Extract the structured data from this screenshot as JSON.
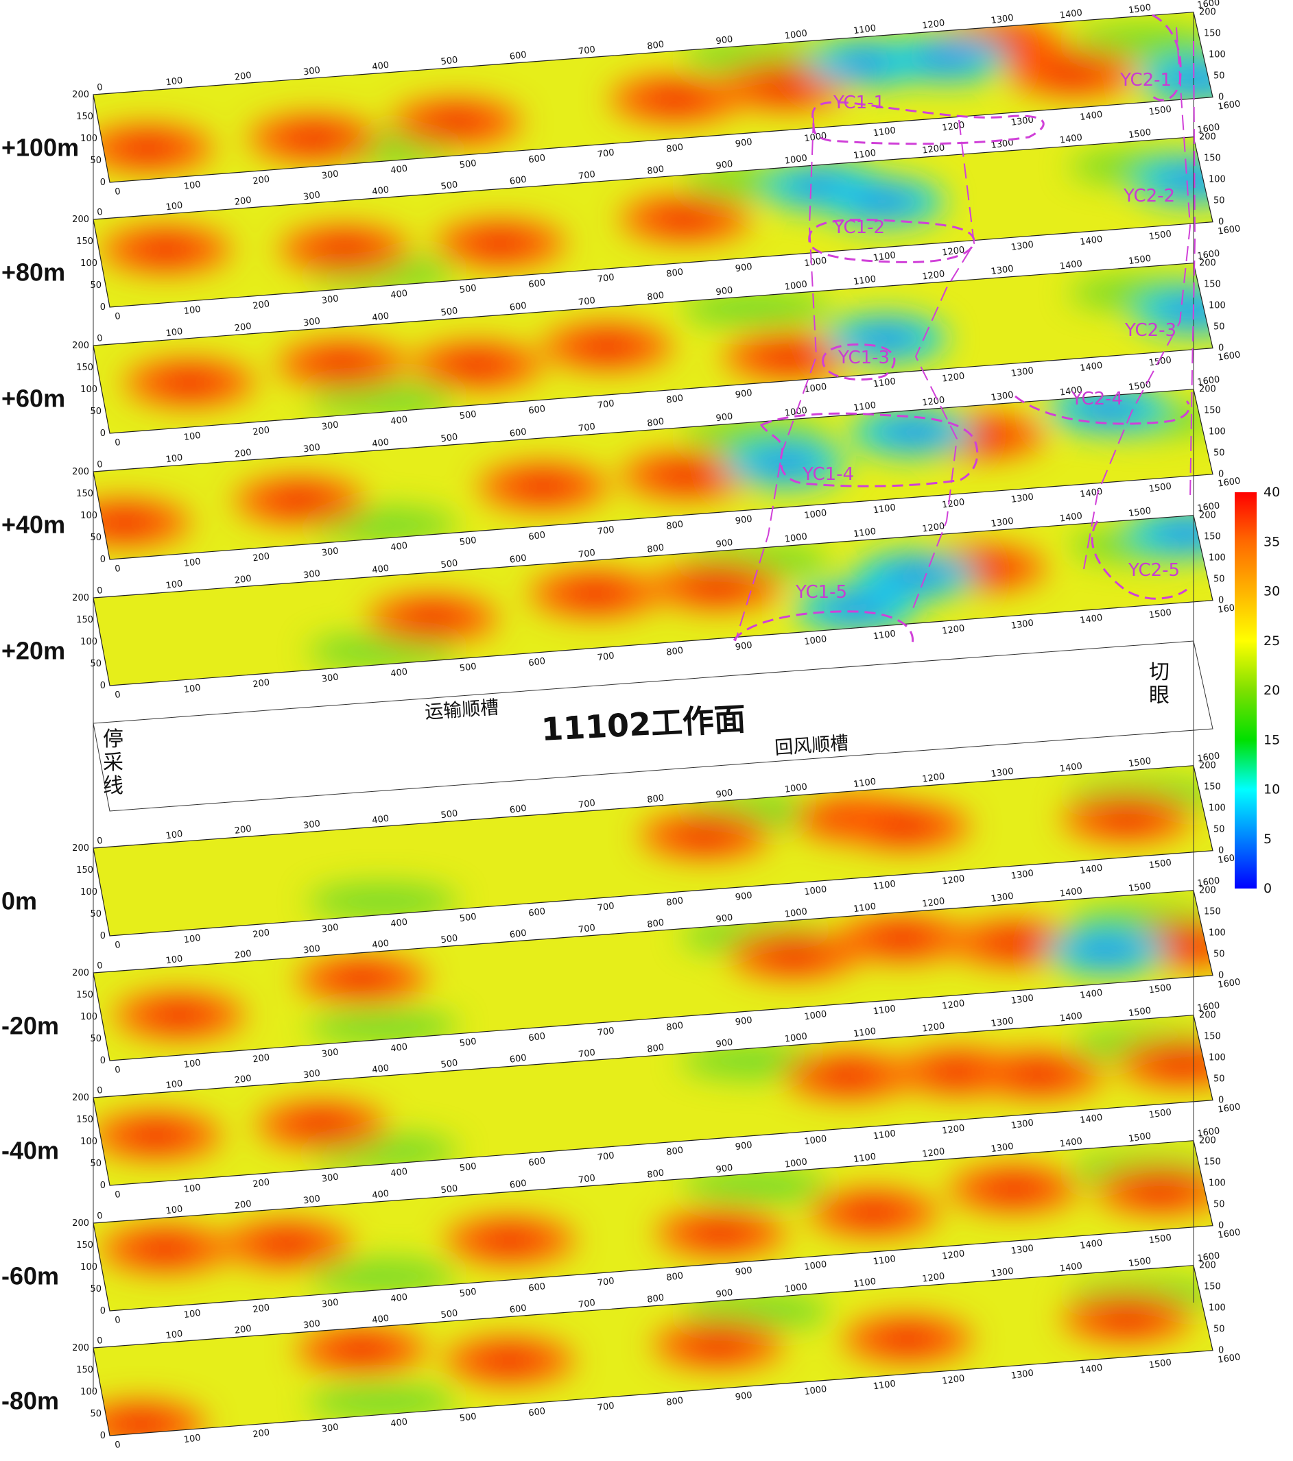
{
  "workface": "11102工作面",
  "roadways": {
    "transport": "运输顺槽",
    "return_air": "回风顺槽"
  },
  "ends": {
    "stop_line": [
      "停",
      "采",
      "线"
    ],
    "cut_eye": [
      "切",
      "眼"
    ]
  },
  "x_ticks": [
    "0",
    "100",
    "200",
    "300",
    "400",
    "500",
    "600",
    "700",
    "800",
    "900",
    "1000",
    "1100",
    "1200",
    "1300",
    "1400",
    "1500",
    "1600"
  ],
  "y_ticks": [
    "0",
    "50",
    "100",
    "150",
    "200"
  ],
  "colorbar": {
    "ticks": [
      "40",
      "35",
      "30",
      "25",
      "20",
      "15",
      "10",
      "5",
      "0"
    ],
    "colors": [
      "#ff0000",
      "#ff6a00",
      "#ffb400",
      "#ffff00",
      "#7ee000",
      "#00e000",
      "#00ffff",
      "#0080ff",
      "#0000ff"
    ]
  },
  "slices": [
    {
      "depth": "+100m",
      "hot": [
        [
          0.04,
          0.65
        ],
        [
          0.19,
          0.68
        ],
        [
          0.32,
          0.62
        ],
        [
          0.52,
          0.55
        ],
        [
          0.62,
          0.5
        ],
        [
          0.82,
          0.18
        ],
        [
          0.88,
          0.6
        ]
      ],
      "cold": [
        [
          0.7,
          0.3
        ],
        [
          0.77,
          0.32
        ],
        [
          0.99,
          0.78
        ]
      ]
    },
    {
      "depth": "+80m",
      "hot": [
        [
          0.06,
          0.4
        ],
        [
          0.22,
          0.55
        ],
        [
          0.36,
          0.62
        ],
        [
          0.53,
          0.5
        ]
      ],
      "cold": [
        [
          0.66,
          0.25
        ],
        [
          0.71,
          0.48
        ],
        [
          0.99,
          0.5
        ]
      ]
    },
    {
      "depth": "+60m",
      "hot": [
        [
          0.08,
          0.5
        ],
        [
          0.22,
          0.42
        ],
        [
          0.34,
          0.55
        ],
        [
          0.46,
          0.45
        ],
        [
          0.62,
          0.72
        ]
      ],
      "cold": [
        [
          0.71,
          0.6
        ],
        [
          0.99,
          0.55
        ]
      ]
    },
    {
      "depth": "+40m",
      "hot": [
        [
          0.02,
          0.6
        ],
        [
          0.18,
          0.5
        ],
        [
          0.4,
          0.55
        ],
        [
          0.53,
          0.55
        ],
        [
          0.8,
          0.35
        ]
      ],
      "cold": [
        [
          0.62,
          0.5
        ],
        [
          0.74,
          0.25
        ],
        [
          0.92,
          0.15
        ]
      ]
    },
    {
      "depth": "+20m",
      "hot": [
        [
          0.3,
          0.52
        ],
        [
          0.45,
          0.38
        ],
        [
          0.56,
          0.4
        ],
        [
          0.8,
          0.42
        ]
      ],
      "cold": [
        [
          0.68,
          0.78
        ],
        [
          0.74,
          0.45
        ],
        [
          0.99,
          0.2
        ]
      ]
    },
    {
      "depth": "0m",
      "hot": [
        [
          0.55,
          0.38
        ],
        [
          0.69,
          0.32
        ],
        [
          0.73,
          0.45
        ],
        [
          0.93,
          0.55
        ]
      ],
      "cold": []
    },
    {
      "depth": "-20m",
      "hot": [
        [
          0.07,
          0.55
        ],
        [
          0.24,
          0.3
        ],
        [
          0.63,
          0.4
        ],
        [
          0.73,
          0.3
        ],
        [
          0.83,
          0.45
        ],
        [
          0.98,
          0.62
        ]
      ],
      "cold": [
        [
          0.91,
          0.62
        ]
      ]
    },
    {
      "depth": "-40m",
      "hot": [
        [
          0.05,
          0.48
        ],
        [
          0.2,
          0.5
        ],
        [
          0.68,
          0.4
        ],
        [
          0.78,
          0.45
        ],
        [
          0.85,
          0.55
        ],
        [
          0.98,
          0.55
        ]
      ],
      "cold": []
    },
    {
      "depth": "-60m",
      "hot": [
        [
          0.06,
          0.35
        ],
        [
          0.17,
          0.4
        ],
        [
          0.37,
          0.55
        ],
        [
          0.56,
          0.65
        ],
        [
          0.7,
          0.55
        ],
        [
          0.83,
          0.4
        ],
        [
          0.96,
          0.55
        ]
      ],
      "cold": []
    },
    {
      "depth": "-80m",
      "hot": [
        [
          0.03,
          0.9
        ],
        [
          0.24,
          0.25
        ],
        [
          0.37,
          0.5
        ],
        [
          0.56,
          0.5
        ],
        [
          0.73,
          0.6
        ],
        [
          0.93,
          0.55
        ]
      ],
      "cold": []
    }
  ],
  "zones": [
    {
      "label": "YC1-1"
    },
    {
      "label": "YC1-2"
    },
    {
      "label": "YC1-3"
    },
    {
      "label": "YC1-4"
    },
    {
      "label": "YC1-5"
    },
    {
      "label": "YC2-1"
    },
    {
      "label": "YC2-2"
    },
    {
      "label": "YC2-3"
    },
    {
      "label": "YC2-4"
    },
    {
      "label": "YC2-5"
    }
  ]
}
